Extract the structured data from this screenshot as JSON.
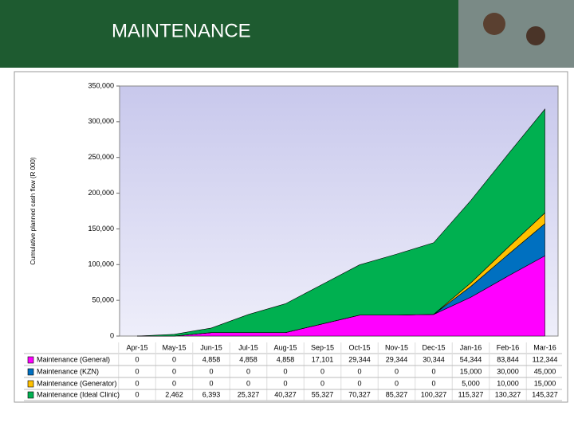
{
  "header": {
    "title": "MAINTENANCE"
  },
  "chart_data": {
    "type": "stacked_area",
    "y_label": "Cumulative planned cash flow (R 000)",
    "categories": [
      "Apr-15",
      "May-15",
      "Jun-15",
      "Jul-15",
      "Aug-15",
      "Sep-15",
      "Oct-15",
      "Nov-15",
      "Dec-15",
      "Jan-16",
      "Feb-16",
      "Mar-16"
    ],
    "series": [
      {
        "name": "Maintenance (General)",
        "color": "#ff00ff",
        "values": [
          0,
          0,
          4858,
          4858,
          4858,
          17101,
          29344,
          29344,
          30344,
          54344,
          83844,
          112344
        ],
        "value_labels": [
          "0",
          "0",
          "4,858",
          "4,858",
          "4,858",
          "17,101",
          "29,344",
          "29,344",
          "30,344",
          "54,344",
          "83,844",
          "112,344"
        ]
      },
      {
        "name": "Maintenance (KZN)",
        "color": "#0070c0",
        "values": [
          0,
          0,
          0,
          0,
          0,
          0,
          0,
          0,
          0,
          15000,
          30000,
          45000
        ],
        "value_labels": [
          "0",
          "0",
          "0",
          "0",
          "0",
          "0",
          "0",
          "0",
          "0",
          "15,000",
          "30,000",
          "45,000"
        ]
      },
      {
        "name": "Maintenance (Generator)",
        "color": "#ffc000",
        "values": [
          0,
          0,
          0,
          0,
          0,
          0,
          0,
          0,
          0,
          5000,
          10000,
          15000
        ],
        "value_labels": [
          "0",
          "0",
          "0",
          "0",
          "0",
          "0",
          "0",
          "0",
          "0",
          "5,000",
          "10,000",
          "15,000"
        ]
      },
      {
        "name": "Maintenance (Ideal Clinic)",
        "color": "#00b050",
        "values": [
          0,
          2462,
          6393,
          25327,
          40327,
          55327,
          70327,
          85327,
          100327,
          115327,
          130327,
          145327
        ],
        "value_labels": [
          "0",
          "2,462",
          "6,393",
          "25,327",
          "40,327",
          "55,327",
          "70,327",
          "85,327",
          "100,327",
          "115,327",
          "130,327",
          "145,327"
        ]
      }
    ],
    "ylim": [
      0,
      350000
    ],
    "yticks": [
      0,
      {
        "value": 50000,
        "label": "50,000"
      },
      {
        "value": 100000,
        "label": "100,000"
      },
      {
        "value": 150000,
        "label": "150,000"
      },
      {
        "value": 200000,
        "label": "200,000"
      },
      {
        "value": 250000,
        "label": "250,000"
      },
      {
        "value": 300000,
        "label": "300,000"
      },
      {
        "value": 350000,
        "label": "350,000"
      }
    ],
    "grid": false
  }
}
